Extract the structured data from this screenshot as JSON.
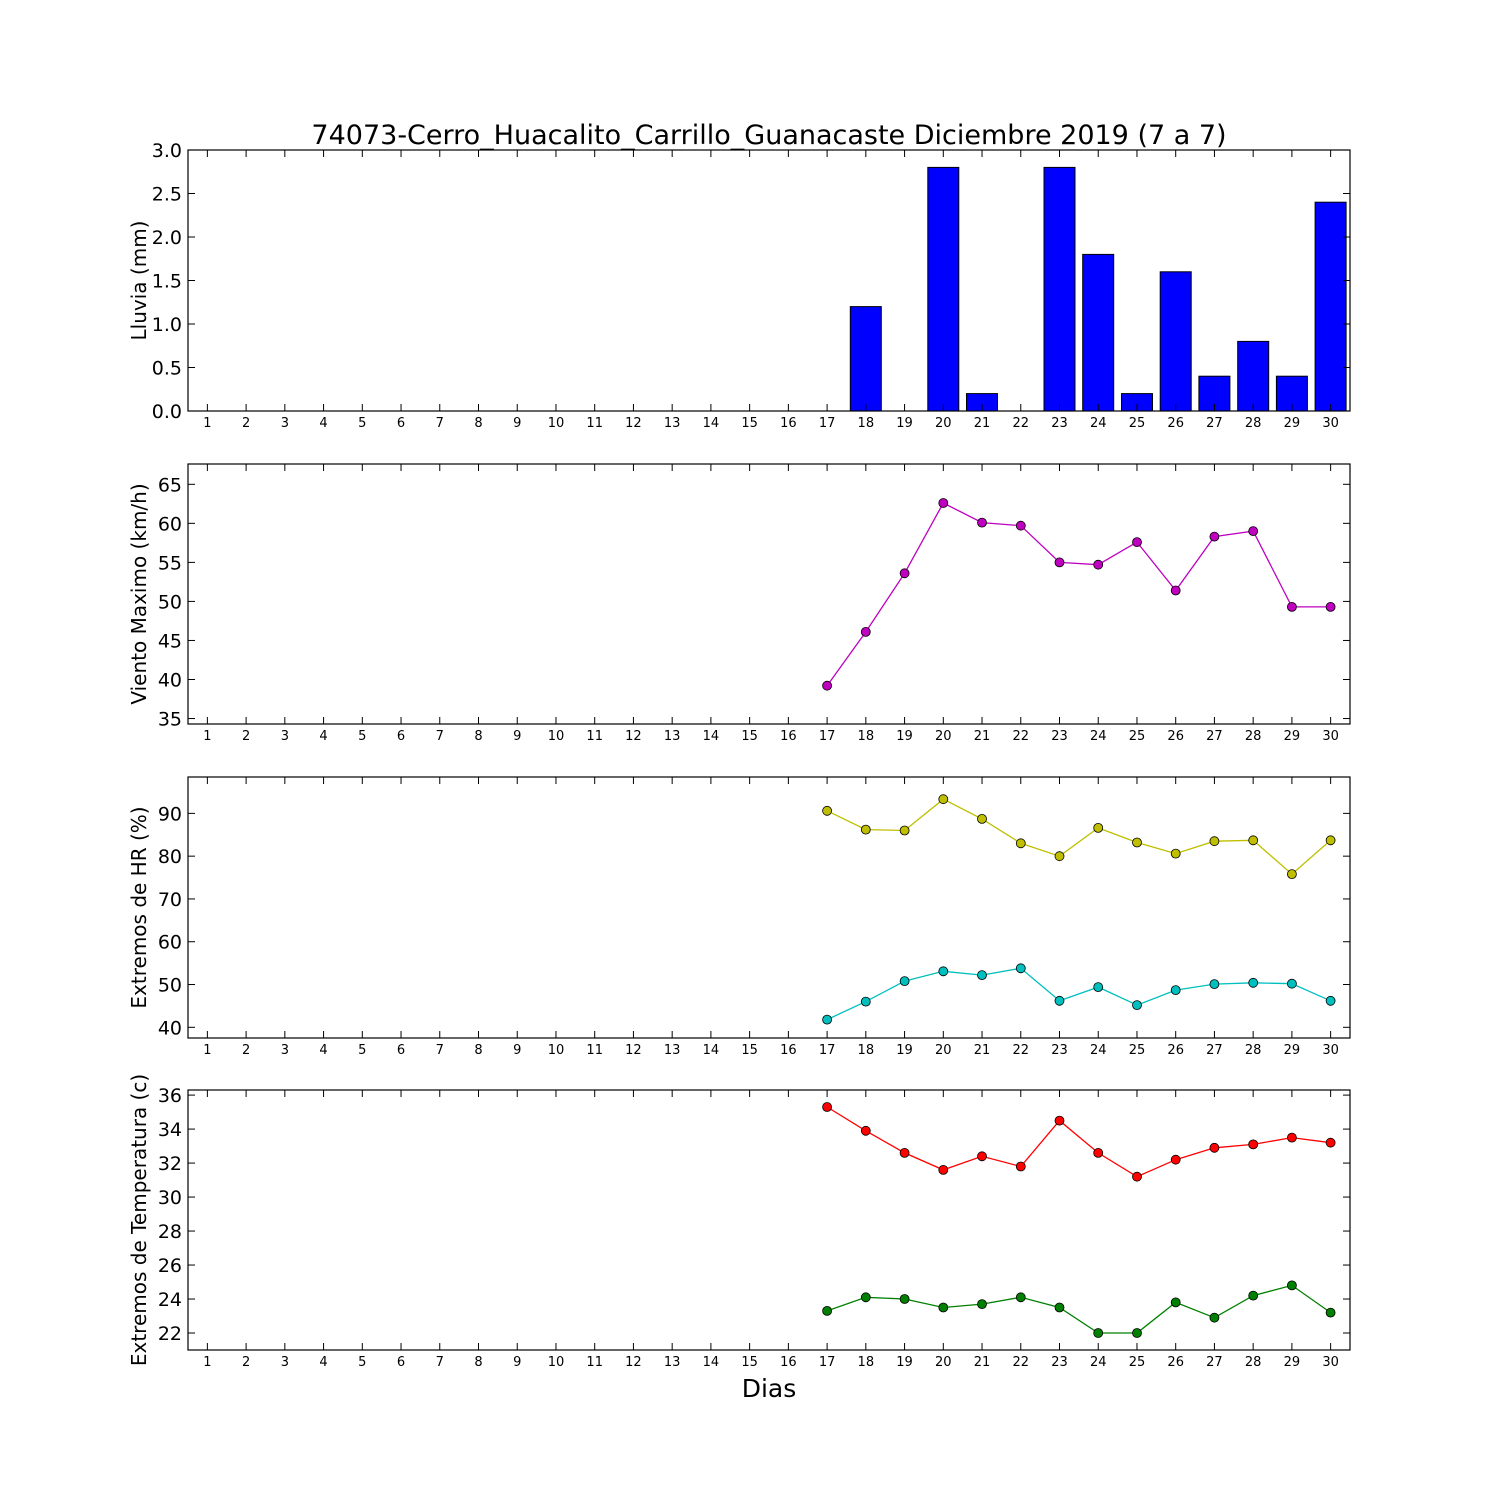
{
  "chart_data": [
    {
      "type": "bar",
      "title": "74073-Cerro_Huacalito_Carrillo_Guanacaste Diciembre 2019  (7 a 7)",
      "ylabel": "Lluvia (mm)",
      "ylim": [
        0,
        3.0
      ],
      "yticks": [
        "0.0",
        "0.5",
        "1.0",
        "1.5",
        "2.0",
        "2.5",
        "3.0"
      ],
      "categories": [
        1,
        2,
        3,
        4,
        5,
        6,
        7,
        8,
        9,
        10,
        11,
        12,
        13,
        14,
        15,
        16,
        17,
        18,
        19,
        20,
        21,
        22,
        23,
        24,
        25,
        26,
        27,
        28,
        29,
        30
      ],
      "series": [
        {
          "color": "#0000ff",
          "x": [
            18,
            19,
            20,
            21,
            22,
            23,
            24,
            25,
            26,
            27,
            28,
            29,
            30
          ],
          "values": [
            1.2,
            0.0,
            2.8,
            0.2,
            0.0,
            2.8,
            1.8,
            0.2,
            1.6,
            0.4,
            0.8,
            0.4,
            2.4
          ]
        }
      ]
    },
    {
      "type": "line",
      "ylabel": "Viento Maximo (km/h)",
      "ylim": [
        34.3,
        67.6
      ],
      "yticks": [
        "35",
        "40",
        "45",
        "50",
        "55",
        "60",
        "65"
      ],
      "categories": [
        1,
        2,
        3,
        4,
        5,
        6,
        7,
        8,
        9,
        10,
        11,
        12,
        13,
        14,
        15,
        16,
        17,
        18,
        19,
        20,
        21,
        22,
        23,
        24,
        25,
        26,
        27,
        28,
        29,
        30
      ],
      "series": [
        {
          "color": "#bf00bf",
          "x": [
            17,
            18,
            19,
            20,
            21,
            22,
            23,
            24,
            25,
            26,
            27,
            28,
            29,
            30
          ],
          "values": [
            39.2,
            46.1,
            53.6,
            62.6,
            60.1,
            59.7,
            55.0,
            54.7,
            57.6,
            51.4,
            58.3,
            59.0,
            49.3,
            49.3
          ]
        }
      ]
    },
    {
      "type": "line",
      "ylabel": "Extremos de HR (%)",
      "ylim": [
        37.5,
        98.5
      ],
      "yticks": [
        "40",
        "50",
        "60",
        "70",
        "80",
        "90"
      ],
      "categories": [
        1,
        2,
        3,
        4,
        5,
        6,
        7,
        8,
        9,
        10,
        11,
        12,
        13,
        14,
        15,
        16,
        17,
        18,
        19,
        20,
        21,
        22,
        23,
        24,
        25,
        26,
        27,
        28,
        29,
        30
      ],
      "series": [
        {
          "color": "#bfbf00",
          "x": [
            17,
            18,
            19,
            20,
            21,
            22,
            23,
            24,
            25,
            26,
            27,
            28,
            29,
            30
          ],
          "values": [
            90.6,
            86.2,
            86.0,
            93.3,
            88.7,
            83.0,
            80.0,
            86.6,
            83.2,
            80.6,
            83.5,
            83.7,
            75.8,
            83.7
          ]
        },
        {
          "color": "#00bfbf",
          "x": [
            17,
            18,
            19,
            20,
            21,
            22,
            23,
            24,
            25,
            26,
            27,
            28,
            29,
            30
          ],
          "values": [
            41.8,
            46.0,
            50.8,
            53.1,
            52.2,
            53.8,
            46.2,
            49.4,
            45.2,
            48.7,
            50.1,
            50.4,
            50.2,
            46.2
          ]
        }
      ]
    },
    {
      "type": "line",
      "ylabel": "Extremos de Temperatura (c)",
      "ylim": [
        21.0,
        36.3
      ],
      "yticks": [
        "22",
        "24",
        "26",
        "28",
        "30",
        "32",
        "34",
        "36"
      ],
      "xlabel": "Dias",
      "categories": [
        1,
        2,
        3,
        4,
        5,
        6,
        7,
        8,
        9,
        10,
        11,
        12,
        13,
        14,
        15,
        16,
        17,
        18,
        19,
        20,
        21,
        22,
        23,
        24,
        25,
        26,
        27,
        28,
        29,
        30
      ],
      "series": [
        {
          "color": "#ff0000",
          "x": [
            17,
            18,
            19,
            20,
            21,
            22,
            23,
            24,
            25,
            26,
            27,
            28,
            29,
            30
          ],
          "values": [
            35.3,
            33.9,
            32.6,
            31.6,
            32.4,
            31.8,
            34.5,
            32.6,
            31.2,
            32.2,
            32.9,
            33.1,
            33.5,
            33.2
          ]
        },
        {
          "color": "#008000",
          "x": [
            17,
            18,
            19,
            20,
            21,
            22,
            23,
            24,
            25,
            26,
            27,
            28,
            29,
            30
          ],
          "values": [
            23.3,
            24.1,
            24.0,
            23.5,
            23.7,
            24.1,
            23.5,
            22.0,
            22.0,
            23.8,
            22.9,
            24.2,
            24.8,
            23.2
          ]
        }
      ]
    }
  ]
}
